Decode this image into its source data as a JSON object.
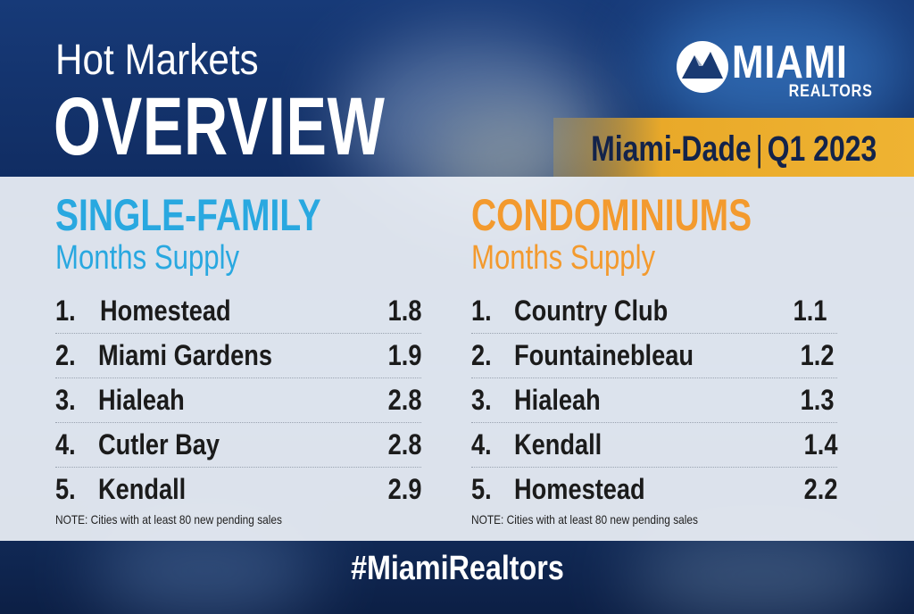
{
  "header": {
    "title_line1": "Hot Markets",
    "title_line2": "OVERVIEW",
    "logo_word": "MIAMI",
    "logo_sub": "REALTORS",
    "logo_mark_icon": "miami-realtors-logo-mark",
    "region": "Miami-Dade",
    "period": "Q1 2023"
  },
  "single_family": {
    "heading": "SINGLE-FAMILY",
    "subheading": "Months Supply",
    "color": "#29a8e0",
    "rows": [
      {
        "rank": "1.",
        "city": "Homestead",
        "value": "1.8"
      },
      {
        "rank": "2.",
        "city": "Miami Gardens",
        "value": "1.9"
      },
      {
        "rank": "3.",
        "city": "Hialeah",
        "value": "2.8"
      },
      {
        "rank": "4.",
        "city": "Cutler Bay",
        "value": "2.8"
      },
      {
        "rank": "5.",
        "city": "Kendall",
        "value": "2.9"
      }
    ],
    "note": "NOTE: Cities with at least 80 new pending sales"
  },
  "condominiums": {
    "heading": "CONDOMINIUMS",
    "subheading": "Months Supply",
    "color": "#f39a2e",
    "rows": [
      {
        "rank": "1.",
        "city": "Country Club",
        "value": "1.1"
      },
      {
        "rank": "2.",
        "city": "Fountainebleau",
        "value": "1.2"
      },
      {
        "rank": "3.",
        "city": "Hialeah",
        "value": "1.3"
      },
      {
        "rank": "4.",
        "city": "Kendall",
        "value": "1.4"
      },
      {
        "rank": "5.",
        "city": "Homestead",
        "value": "2.2"
      }
    ],
    "note": "NOTE: Cities with at least 80 new pending sales"
  },
  "footer": {
    "hashtag": "#MiamiRealtors"
  }
}
